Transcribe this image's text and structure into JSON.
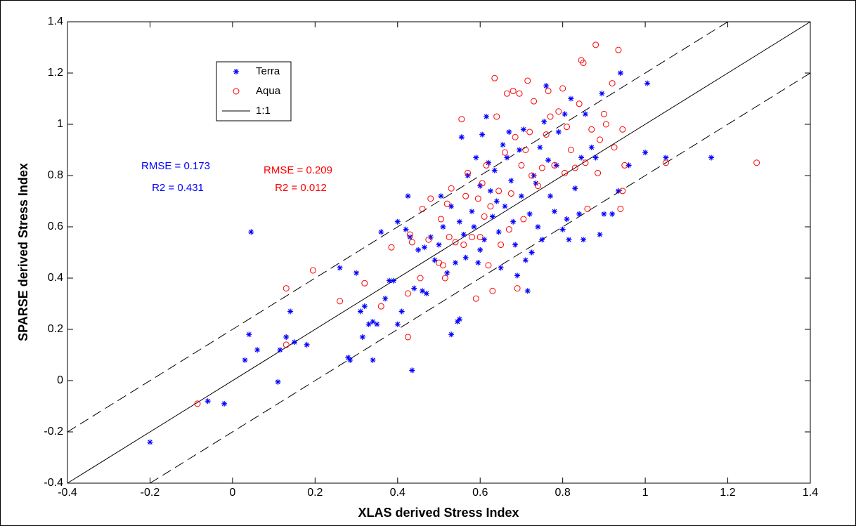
{
  "chart_data": {
    "type": "scatter",
    "xlabel": "XLAS derived Stress Index",
    "ylabel": "SPARSE derived Stress Index",
    "xlim": [
      -0.4,
      1.4
    ],
    "ylim": [
      -0.4,
      1.4
    ],
    "xticks": [
      -0.4,
      -0.2,
      0,
      0.2,
      0.4,
      0.6,
      0.8,
      1,
      1.2,
      1.4
    ],
    "yticks": [
      -0.4,
      -0.2,
      0,
      0.2,
      0.4,
      0.6,
      0.8,
      1,
      1.2,
      1.4
    ],
    "legend": "upper left",
    "series": [
      {
        "name": "Terra",
        "color": "#0000ff",
        "marker": "asterisk",
        "x": [
          -0.2,
          -0.06,
          -0.02,
          0.03,
          0.04,
          0.045,
          0.06,
          0.11,
          0.115,
          0.13,
          0.14,
          0.15,
          0.18,
          0.26,
          0.28,
          0.285,
          0.3,
          0.31,
          0.315,
          0.32,
          0.33,
          0.34,
          0.34,
          0.35,
          0.36,
          0.37,
          0.38,
          0.39,
          0.4,
          0.4,
          0.41,
          0.42,
          0.425,
          0.43,
          0.435,
          0.44,
          0.45,
          0.46,
          0.465,
          0.47,
          0.48,
          0.49,
          0.5,
          0.505,
          0.51,
          0.52,
          0.53,
          0.53,
          0.54,
          0.545,
          0.55,
          0.55,
          0.555,
          0.56,
          0.565,
          0.57,
          0.58,
          0.585,
          0.59,
          0.595,
          0.6,
          0.6,
          0.605,
          0.61,
          0.615,
          0.62,
          0.625,
          0.63,
          0.635,
          0.64,
          0.645,
          0.65,
          0.655,
          0.66,
          0.665,
          0.67,
          0.675,
          0.68,
          0.685,
          0.69,
          0.695,
          0.7,
          0.705,
          0.71,
          0.715,
          0.72,
          0.725,
          0.73,
          0.735,
          0.74,
          0.745,
          0.75,
          0.755,
          0.76,
          0.765,
          0.77,
          0.78,
          0.785,
          0.79,
          0.8,
          0.805,
          0.81,
          0.815,
          0.82,
          0.83,
          0.84,
          0.845,
          0.85,
          0.855,
          0.87,
          0.88,
          0.89,
          0.895,
          0.9,
          0.92,
          0.935,
          0.94,
          0.96,
          1.0,
          1.005,
          1.05,
          1.16
        ],
        "y": [
          -0.24,
          -0.08,
          -0.09,
          0.08,
          0.18,
          0.58,
          0.12,
          -0.005,
          0.12,
          0.17,
          0.27,
          0.15,
          0.14,
          0.44,
          0.09,
          0.08,
          0.42,
          0.27,
          0.17,
          0.29,
          0.22,
          0.23,
          0.08,
          0.22,
          0.58,
          0.32,
          0.39,
          0.39,
          0.22,
          0.62,
          0.27,
          0.59,
          0.72,
          0.56,
          0.04,
          0.36,
          0.51,
          0.35,
          0.52,
          0.34,
          0.56,
          0.47,
          0.53,
          0.72,
          0.6,
          0.42,
          0.18,
          0.68,
          0.46,
          0.23,
          0.24,
          0.62,
          0.95,
          0.57,
          0.48,
          0.8,
          0.66,
          0.6,
          0.87,
          0.46,
          0.51,
          0.76,
          0.96,
          0.55,
          1.03,
          0.85,
          0.74,
          0.64,
          0.82,
          0.7,
          0.58,
          0.44,
          0.92,
          0.68,
          0.87,
          0.97,
          0.78,
          0.62,
          0.53,
          0.41,
          0.9,
          0.72,
          0.98,
          0.47,
          0.35,
          0.65,
          0.5,
          0.8,
          0.77,
          0.6,
          0.91,
          0.55,
          1.01,
          1.15,
          0.86,
          0.72,
          0.66,
          0.84,
          0.97,
          0.59,
          1.04,
          0.63,
          0.55,
          1.1,
          0.75,
          0.65,
          0.87,
          0.55,
          1.04,
          0.91,
          0.87,
          0.57,
          1.12,
          0.65,
          0.65,
          0.74,
          1.2,
          0.84,
          0.89,
          1.16,
          0.87,
          0.87
        ]
      },
      {
        "name": "Aqua",
        "color": "#ff0000",
        "marker": "circle",
        "x": [
          -0.085,
          0.13,
          0.13,
          0.195,
          0.26,
          0.32,
          0.36,
          0.385,
          0.425,
          0.425,
          0.43,
          0.435,
          0.455,
          0.46,
          0.475,
          0.48,
          0.5,
          0.505,
          0.51,
          0.515,
          0.52,
          0.525,
          0.53,
          0.54,
          0.555,
          0.56,
          0.565,
          0.57,
          0.58,
          0.59,
          0.595,
          0.6,
          0.605,
          0.61,
          0.615,
          0.62,
          0.625,
          0.63,
          0.635,
          0.64,
          0.645,
          0.65,
          0.66,
          0.665,
          0.67,
          0.675,
          0.68,
          0.685,
          0.69,
          0.695,
          0.7,
          0.705,
          0.71,
          0.715,
          0.72,
          0.725,
          0.73,
          0.74,
          0.75,
          0.76,
          0.765,
          0.77,
          0.78,
          0.79,
          0.8,
          0.805,
          0.81,
          0.82,
          0.83,
          0.84,
          0.845,
          0.85,
          0.855,
          0.86,
          0.87,
          0.88,
          0.885,
          0.89,
          0.9,
          0.905,
          0.92,
          0.925,
          0.935,
          0.94,
          0.945,
          0.95,
          0.945,
          1.05,
          1.27
        ],
        "y": [
          -0.09,
          0.36,
          0.14,
          0.43,
          0.31,
          0.38,
          0.29,
          0.52,
          0.17,
          0.34,
          0.57,
          0.54,
          0.4,
          0.67,
          0.55,
          0.71,
          0.46,
          0.63,
          0.45,
          0.4,
          0.69,
          0.56,
          0.75,
          0.54,
          1.02,
          0.53,
          0.72,
          0.81,
          0.56,
          0.32,
          0.71,
          0.56,
          0.77,
          0.64,
          0.84,
          0.45,
          0.68,
          0.35,
          1.18,
          1.03,
          0.74,
          0.53,
          0.89,
          1.12,
          0.59,
          0.73,
          1.13,
          0.95,
          0.36,
          1.12,
          0.84,
          0.63,
          0.9,
          1.17,
          0.97,
          0.8,
          1.09,
          0.76,
          0.83,
          0.96,
          1.13,
          1.03,
          0.84,
          1.05,
          1.14,
          0.81,
          0.99,
          0.9,
          0.83,
          1.08,
          1.25,
          1.24,
          0.85,
          0.67,
          0.98,
          1.31,
          0.81,
          0.94,
          1.04,
          1.0,
          1.16,
          0.91,
          1.29,
          0.67,
          0.98,
          0.84,
          0.74,
          0.85,
          0.85
        ]
      }
    ],
    "reference_lines": [
      {
        "name": "1:1",
        "color": "#000000",
        "dash": false,
        "x": [
          -0.4,
          1.4
        ],
        "y": [
          -0.4,
          1.4
        ]
      },
      {
        "color": "#000000",
        "dash": true,
        "x": [
          -0.4,
          1.2
        ],
        "y": [
          -0.2,
          1.4
        ]
      },
      {
        "color": "#000000",
        "dash": true,
        "x": [
          -0.2,
          1.4
        ],
        "y": [
          -0.4,
          1.2
        ]
      }
    ],
    "annotations": [
      {
        "text": "RMSE = 0.173",
        "color": "#0000ff"
      },
      {
        "text": "R2 = 0.431",
        "color": "#0000ff"
      },
      {
        "text": "RMSE = 0.209",
        "color": "#ff0000"
      },
      {
        "text": "R2 = 0.012",
        "color": "#ff0000"
      }
    ]
  }
}
